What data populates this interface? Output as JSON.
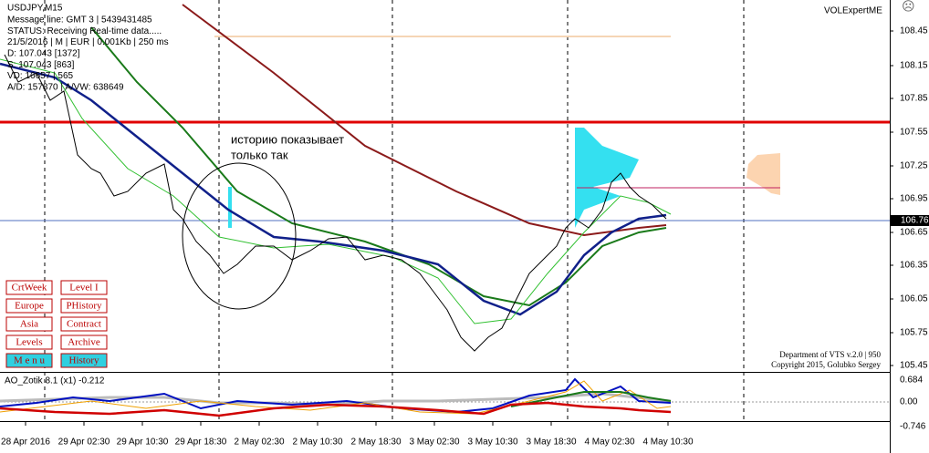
{
  "header": {
    "symbol": "USDJPY,M15",
    "lines": [
      "Message line: GMT 3 | 5439431485",
      "STATUS: Receiving Real-time data.....",
      "21/5/2016 | M | EUR | 0.001Kb | 250 ms",
      "D: 107.043 [1372]",
      "S: 107.043 [863]",
      "VD: 16657 | 565",
      "A/D: 157870 | A/VW: 638649"
    ],
    "brand": "VOLExpertME"
  },
  "annotation": [
    "историю показывает",
    "только так"
  ],
  "buttons": [
    "CrtWeek",
    "Level I",
    "Europe",
    "PHistory",
    "Asia",
    "Contract",
    "Levels",
    "Archive",
    "M e n u",
    "History"
  ],
  "footer": [
    "Department of VTS v.2.0 | 950",
    "Copyright 2015, Golubko Sergey"
  ],
  "price_axis": [
    "108.45",
    "108.15",
    "107.85",
    "107.55",
    "107.25",
    "106.95",
    "106.65",
    "106.35",
    "106.05",
    "105.75",
    "105.45"
  ],
  "current_price": "106.76",
  "indicator": {
    "label": "AO_Zotik 8.1 (x1) -0.212",
    "axis": [
      "0.684",
      "0.00",
      "-0.746"
    ]
  },
  "time_axis": [
    "28 Apr 2016",
    "29 Apr 02:30",
    "29 Apr 10:30",
    "29 Apr 18:30",
    "2 May 02:30",
    "2 May 10:30",
    "2 May 18:30",
    "3 May 02:30",
    "3 May 10:30",
    "3 May 18:30",
    "4 May 02:30",
    "4 May 10:30"
  ]
}
